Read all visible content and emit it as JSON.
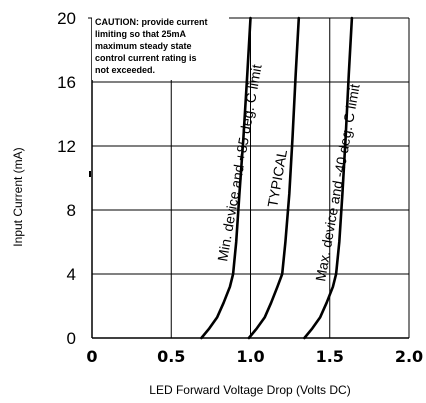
{
  "chart_data": {
    "type": "line",
    "xlabel": "LED Forward Voltage Drop (Volts DC)",
    "ylabel": "Input Current (mA)",
    "xlim": [
      0,
      2.0
    ],
    "ylim": [
      0,
      20
    ],
    "x_ticks": [
      "0",
      "0.5",
      "1.0",
      "1.5",
      "2.0"
    ],
    "y_ticks": [
      "0",
      "4",
      "8",
      "12",
      "16",
      "20"
    ],
    "grid": true,
    "caution_lines": [
      "CAUTION: provide current",
      "limiting so that 25mA",
      "maximum steady state",
      "control current rating is",
      "not exceeded."
    ],
    "series": [
      {
        "name": "Min. device and +85 deg. C limit",
        "x": [
          0.69,
          0.74,
          0.79,
          0.83,
          0.87,
          0.89,
          0.91,
          0.93,
          0.955,
          0.98,
          1.0
        ],
        "y": [
          0,
          0.6,
          1.3,
          2.2,
          3.2,
          4.0,
          6.0,
          9.0,
          12.5,
          16.5,
          20
        ]
      },
      {
        "name": "TYPICAL",
        "x": [
          0.99,
          1.04,
          1.09,
          1.13,
          1.17,
          1.2,
          1.22,
          1.245,
          1.265,
          1.285,
          1.305
        ],
        "y": [
          0,
          0.6,
          1.3,
          2.2,
          3.2,
          4.0,
          6.0,
          9.0,
          12.5,
          16.5,
          20
        ]
      },
      {
        "name": "Max. device and -40 deg. C limit",
        "x": [
          1.34,
          1.39,
          1.44,
          1.48,
          1.52,
          1.54,
          1.56,
          1.58,
          1.6,
          1.62,
          1.64
        ],
        "y": [
          0,
          0.6,
          1.3,
          2.2,
          3.2,
          4.0,
          6.0,
          9.0,
          12.5,
          16.5,
          20
        ]
      }
    ],
    "colors": {
      "line": "#000000",
      "grid": "#000000",
      "background": "#ffffff"
    }
  }
}
